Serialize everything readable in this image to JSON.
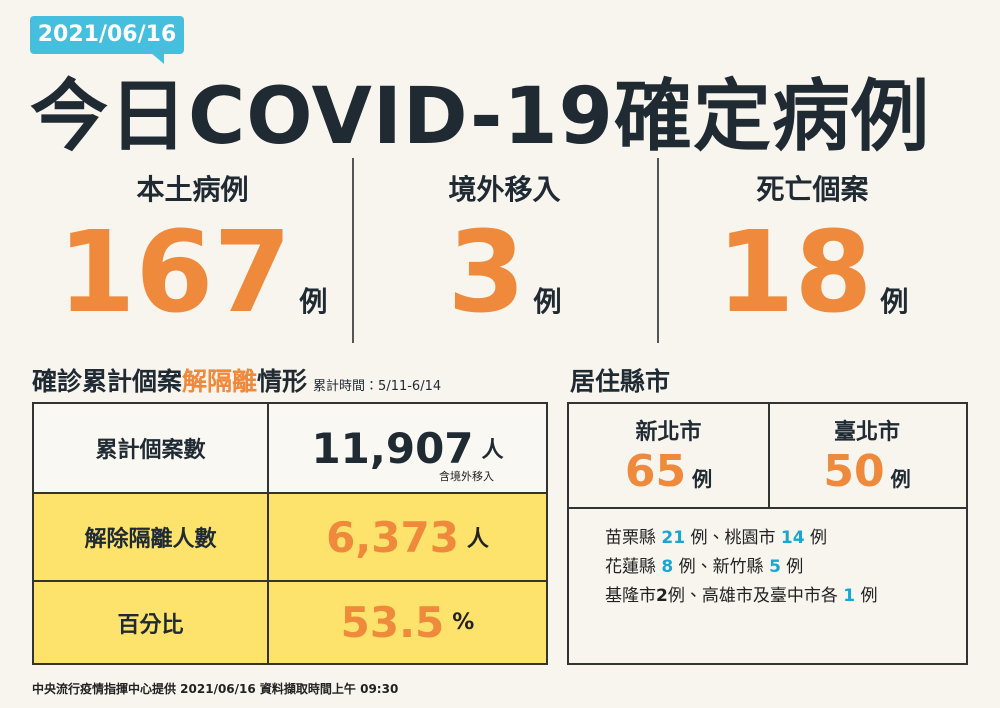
{
  "header": {
    "date": "2021/06/16",
    "title": "今日COVID-19確定病例"
  },
  "stats": [
    {
      "label": "本土病例",
      "value": "167",
      "unit": "例"
    },
    {
      "label": "境外移入",
      "value": "3",
      "unit": "例"
    },
    {
      "label": "死亡個案",
      "value": "18",
      "unit": "例"
    }
  ],
  "recovery": {
    "title": [
      "確診累計個案",
      "解隔離",
      "情形"
    ],
    "note": "累計時間：5/11-6/14",
    "rows": [
      {
        "label": "累計個案數",
        "value": "11,907",
        "unit": "人",
        "note": "含境外移入"
      },
      {
        "label": "解除隔離人數",
        "value": "6,373",
        "unit": "人"
      },
      {
        "label": "百分比",
        "value": "53.5",
        "unit": "%"
      }
    ]
  },
  "residence": {
    "title": "居住縣市",
    "cities": [
      {
        "name": "新北市",
        "value": "65",
        "unit": "例"
      },
      {
        "name": "臺北市",
        "value": "50",
        "unit": "例"
      }
    ],
    "others": [
      [
        "苗栗縣 ",
        "21",
        " 例、桃園市 ",
        "14",
        " 例"
      ],
      [
        "花蓮縣 ",
        "8",
        " 例、新竹縣 ",
        "5",
        " 例"
      ],
      [
        "基隆市",
        "2",
        "例、高雄市及臺中市各 ",
        "1",
        " 例"
      ]
    ]
  },
  "footer": "中央流行疫情指揮中心提供  2021/06/16  資料擷取時間上午 09:30"
}
